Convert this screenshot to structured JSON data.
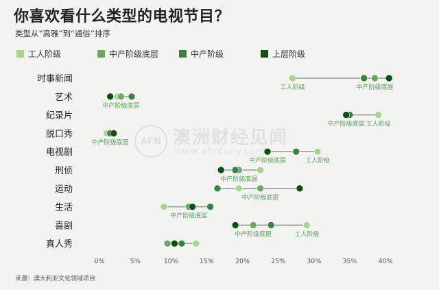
{
  "title": "你喜欢看什么类型的电视节目？",
  "subtitle": "类型从“高雅”到“通俗”排序",
  "source": "来源：澳大利亚文化领域项目",
  "watermark": {
    "logo": "AFN",
    "text": "澳洲财经见闻",
    "url": "www.afndaily.com"
  },
  "colors": {
    "background": "#f3f3f1",
    "line": "#9a9a9a",
    "label_green": "#5a9a5a",
    "series": [
      "#a6d491",
      "#6aa865",
      "#3d7f49",
      "#0b4f12"
    ]
  },
  "chart_data": {
    "type": "dot-plot",
    "x_ticks": [
      "0%",
      "5%",
      "10%",
      "15%",
      "20%",
      "25%",
      "30%",
      "35%",
      "40%"
    ],
    "xlim": [
      0,
      40
    ],
    "series": [
      {
        "name": "工人阶级"
      },
      {
        "name": "中产阶级底层"
      },
      {
        "name": "中产阶级"
      },
      {
        "name": "上层阶级"
      }
    ],
    "categories": [
      {
        "label": "时事新闻",
        "values": [
          27.0,
          38.5,
          37.0,
          40.5
        ],
        "annotations": [
          {
            "text": "工人阶级",
            "x": 27.0
          },
          {
            "text": "中产阶级底层",
            "x": 38.5
          }
        ]
      },
      {
        "label": "艺术",
        "values": [
          2.5,
          3.0,
          4.5,
          1.5
        ],
        "annotations": [
          {
            "text": "中产阶级底层",
            "x": 3.0
          }
        ]
      },
      {
        "label": "纪录片",
        "values": [
          39.0,
          34.5,
          35.0,
          34.5
        ],
        "annotations": [
          {
            "text": "中产阶级底层",
            "x": 34.5
          },
          {
            "text": "工人阶级",
            "x": 39.0
          }
        ]
      },
      {
        "label": "脱口秀",
        "values": [
          1.0,
          1.5,
          1.5,
          2.0
        ],
        "annotations": [
          {
            "text": "中产阶级底层",
            "x": 1.5
          }
        ]
      },
      {
        "label": "电视剧",
        "values": [
          30.5,
          23.5,
          27.5,
          23.5
        ],
        "annotations": [
          {
            "text": "中产阶级底层",
            "x": 23.5
          },
          {
            "text": "工人阶级",
            "x": 30.5
          }
        ]
      },
      {
        "label": "刑侦",
        "values": [
          22.5,
          19.5,
          19.0,
          17.0
        ],
        "annotations": [
          {
            "text": "中产阶级底层",
            "x": 19.5
          }
        ]
      },
      {
        "label": "运动",
        "values": [
          19.5,
          22.5,
          16.5,
          28.0
        ],
        "annotations": [
          {
            "text": "中产阶级底层",
            "x": 22.5
          }
        ]
      },
      {
        "label": "生活",
        "values": [
          9.0,
          12.5,
          15.5,
          13.0
        ],
        "annotations": [
          {
            "text": "中产阶级底层",
            "x": 12.5
          }
        ]
      },
      {
        "label": "喜剧",
        "values": [
          29.0,
          21.5,
          24.0,
          19.0
        ],
        "annotations": [
          {
            "text": "中产阶级底层",
            "x": 21.5
          },
          {
            "text": "工人阶级",
            "x": 29.0
          }
        ]
      },
      {
        "label": "真人秀",
        "values": [
          13.5,
          9.5,
          11.5,
          10.5
        ],
        "annotations": []
      }
    ]
  }
}
